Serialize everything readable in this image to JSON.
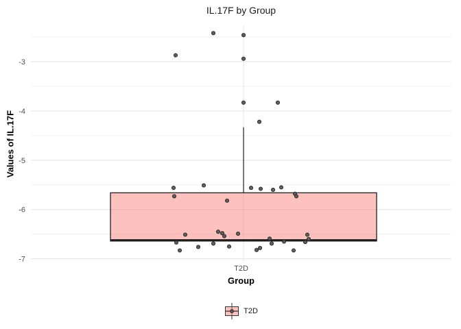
{
  "chart_data": {
    "type": "boxplot",
    "title": "IL.17F by Group",
    "xlabel": "Group",
    "ylabel": "Values of IL.17F",
    "categories": [
      "T2D"
    ],
    "yticks": [
      -3,
      -4,
      -5,
      -6,
      -7
    ],
    "ylim": [
      -7.04,
      -2.28
    ],
    "grid": {
      "major": true,
      "minor": true
    },
    "legend": {
      "position": "bottom",
      "entries": [
        {
          "label": "T2D"
        }
      ]
    },
    "box": {
      "group": "T2D",
      "q1": -6.64,
      "median": -6.62,
      "q3": -5.66,
      "whisker_low": -6.64,
      "whisker_high": -4.33
    },
    "points_format": "[jitter_px_offset_from_center, value]",
    "points": [
      [
        -44,
        -2.42
      ],
      [
        0,
        -2.46
      ],
      [
        -99,
        -2.87
      ],
      [
        0,
        -2.94
      ],
      [
        0,
        -3.83
      ],
      [
        50,
        -3.83
      ],
      [
        23,
        -4.22
      ],
      [
        -58,
        -5.51
      ],
      [
        55,
        -5.55
      ],
      [
        -102,
        -5.56
      ],
      [
        11,
        -5.56
      ],
      [
        25,
        -5.58
      ],
      [
        43,
        -5.6
      ],
      [
        75,
        -5.68
      ],
      [
        -101,
        -5.73
      ],
      [
        77,
        -5.73
      ],
      [
        -24,
        -5.82
      ],
      [
        -37,
        -6.45
      ],
      [
        -31,
        -6.48
      ],
      [
        -8,
        -6.49
      ],
      [
        -85,
        -6.51
      ],
      [
        93,
        -6.51
      ],
      [
        -28,
        -6.54
      ],
      [
        38,
        -6.59
      ],
      [
        95,
        -6.6
      ],
      [
        59,
        -6.65
      ],
      [
        90,
        -6.66
      ],
      [
        -98,
        -6.67
      ],
      [
        41,
        -6.69
      ],
      [
        -44,
        -6.69
      ],
      [
        -21,
        -6.75
      ],
      [
        -66,
        -6.76
      ],
      [
        24,
        -6.78
      ],
      [
        19,
        -6.82
      ],
      [
        -93,
        -6.83
      ],
      [
        73,
        -6.83
      ]
    ],
    "style": {
      "box_fill": "#F8766D",
      "box_fill_opacity": 0.45,
      "box_stroke": "#1f1f1f",
      "point_fill": "#565656",
      "point_stroke": "#2b2b2b",
      "grid_major": "#e3e3e3",
      "grid_minor": "#f0f0f0",
      "tick_label_color": "#4d4d4d"
    }
  }
}
